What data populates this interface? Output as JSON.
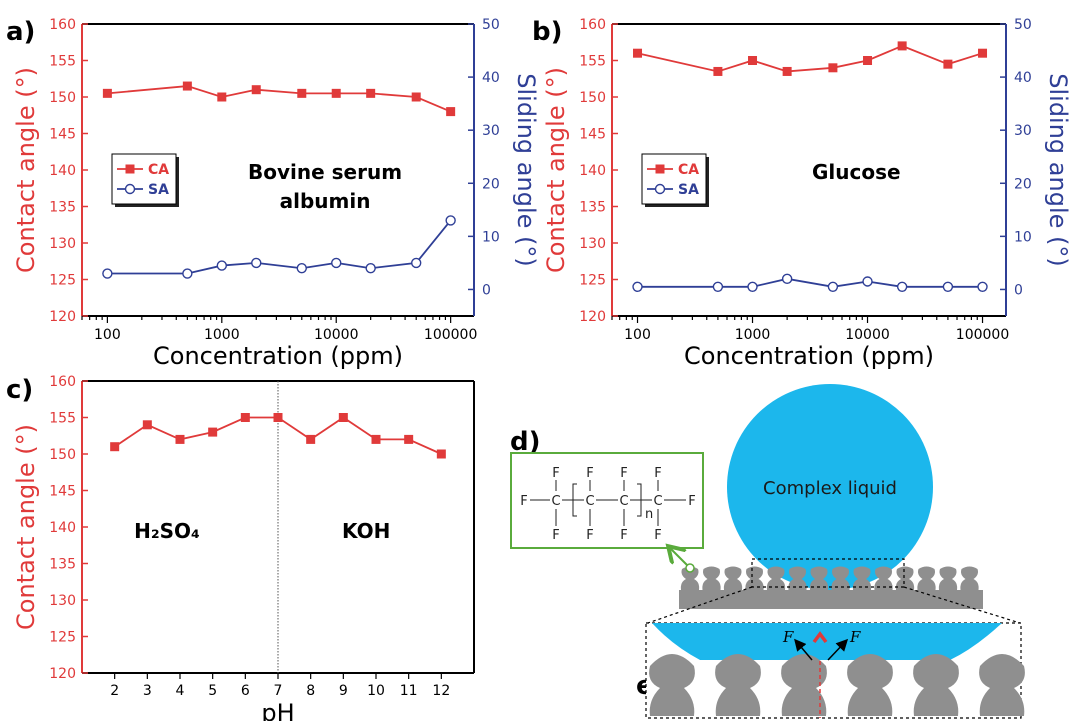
{
  "panel_labels": {
    "a": "a)",
    "b": "b)",
    "c": "c)",
    "d": "d)",
    "e": "e)"
  },
  "chart_data": [
    {
      "panel": "a",
      "type": "line",
      "x_scale": "log",
      "x": [
        100,
        500,
        1000,
        2000,
        5000,
        10000,
        20000,
        50000,
        100000
      ],
      "x_ticks": [
        "100",
        "1000",
        "10000",
        "100000"
      ],
      "xlabel": "Concentration (ppm)",
      "ylabel": "Contact angle (°)",
      "ylim": [
        120,
        160
      ],
      "y_ticks": [
        "120",
        "125",
        "130",
        "135",
        "140",
        "145",
        "150",
        "155",
        "160"
      ],
      "y2label": "Sliding angle (°)",
      "y2lim": [
        -5,
        50
      ],
      "y2_ticks": [
        "0",
        "10",
        "20",
        "30",
        "40",
        "50"
      ],
      "annotation": [
        "Bovine serum",
        "albumin"
      ],
      "legend": {
        "position": "left",
        "entries": [
          "CA",
          "SA"
        ]
      },
      "series": [
        {
          "name": "CA",
          "axis": "left",
          "color": "#e03a3a",
          "marker": "square",
          "values": [
            150.5,
            151.5,
            150,
            151,
            150.5,
            150.5,
            150.5,
            150,
            148
          ]
        },
        {
          "name": "SA",
          "axis": "right",
          "color": "#2f3f96",
          "marker": "open-circle",
          "values": [
            3,
            3,
            4.5,
            5,
            4,
            5,
            4,
            5,
            13
          ]
        }
      ]
    },
    {
      "panel": "b",
      "type": "line",
      "x_scale": "log",
      "x": [
        100,
        500,
        1000,
        2000,
        5000,
        10000,
        20000,
        50000,
        100000
      ],
      "x_ticks": [
        "100",
        "1000",
        "10000",
        "100000"
      ],
      "xlabel": "Concentration (ppm)",
      "ylabel": "Contact angle (°)",
      "ylim": [
        120,
        160
      ],
      "y_ticks": [
        "120",
        "125",
        "130",
        "135",
        "140",
        "145",
        "150",
        "155",
        "160"
      ],
      "y2label": "Sliding angle (°)",
      "y2lim": [
        -5,
        50
      ],
      "y2_ticks": [
        "0",
        "10",
        "20",
        "30",
        "40",
        "50"
      ],
      "annotation": [
        "Glucose"
      ],
      "legend": {
        "position": "left",
        "entries": [
          "CA",
          "SA"
        ]
      },
      "series": [
        {
          "name": "CA",
          "axis": "left",
          "color": "#e03a3a",
          "marker": "square",
          "values": [
            156,
            153.5,
            155,
            153.5,
            154,
            155,
            157,
            154.5,
            156
          ]
        },
        {
          "name": "SA",
          "axis": "right",
          "color": "#2f3f96",
          "marker": "open-circle",
          "values": [
            0.5,
            0.5,
            0.5,
            2,
            0.5,
            1.5,
            0.5,
            0.5,
            0.5
          ]
        }
      ]
    },
    {
      "panel": "c",
      "type": "line",
      "x": [
        2,
        3,
        4,
        5,
        6,
        7,
        8,
        9,
        10,
        11,
        12
      ],
      "x_ticks": [
        "2",
        "3",
        "4",
        "5",
        "6",
        "7",
        "8",
        "9",
        "10",
        "11",
        "12"
      ],
      "xlim": [
        1,
        13
      ],
      "xlabel": "pH",
      "ylabel": "Contact angle (°)",
      "ylim": [
        120,
        160
      ],
      "y_ticks": [
        "120",
        "125",
        "130",
        "135",
        "140",
        "145",
        "150",
        "155",
        "160"
      ],
      "divider_x": 7,
      "region_labels": [
        "H₂SO₄",
        "KOH"
      ],
      "series": [
        {
          "name": "CA",
          "axis": "left",
          "color": "#e03a3a",
          "marker": "square",
          "values": [
            151,
            154,
            152,
            153,
            155,
            155,
            152,
            155,
            152,
            152,
            150
          ]
        }
      ]
    }
  ],
  "schematic": {
    "liquid_label": "Complex liquid",
    "liquid_color": "#1cb7ec",
    "pillar_color": "#8f8f8f",
    "structure_border_color": "#5aab3c",
    "force_label": "F",
    "chem": {
      "f": "F",
      "c": "C",
      "n": "n"
    }
  }
}
